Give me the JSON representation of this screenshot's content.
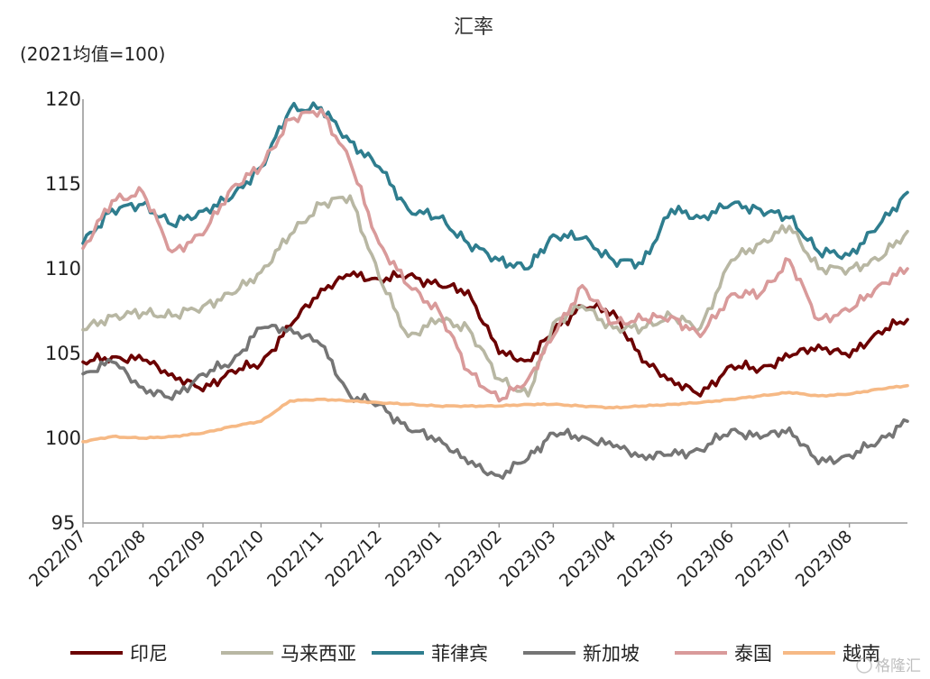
{
  "chart_data": {
    "type": "line",
    "title": "汇率",
    "unit_label": "(2021均值=100)",
    "ylim": [
      95,
      120
    ],
    "y_ticks": [
      95,
      100,
      105,
      110,
      115,
      120
    ],
    "x_tick_labels": [
      "2022/07",
      "2022/08",
      "2022/09",
      "2022/10",
      "2022/11",
      "2022/12",
      "2023/01",
      "2023/02",
      "2023/03",
      "2023/04",
      "2023/05",
      "2023/06",
      "2023/07",
      "2023/08"
    ],
    "x": [
      "2022/07/01",
      "2022/07/16",
      "2022/08/01",
      "2022/08/16",
      "2022/09/01",
      "2022/09/16",
      "2022/10/01",
      "2022/10/16",
      "2022/11/01",
      "2022/11/16",
      "2022/12/01",
      "2022/12/16",
      "2023/01/01",
      "2023/01/16",
      "2023/02/01",
      "2023/02/16",
      "2023/03/01",
      "2023/03/16",
      "2023/04/01",
      "2023/04/16",
      "2023/05/01",
      "2023/05/16",
      "2023/06/01",
      "2023/06/16",
      "2023/07/01",
      "2023/07/16",
      "2023/08/01",
      "2023/08/16",
      "2023/08/31"
    ],
    "grid": false,
    "legend_position": "bottom",
    "series": [
      {
        "name": "印尼",
        "color": "#6b0000",
        "values": [
          104.5,
          104.8,
          104.6,
          103.8,
          102.8,
          104.0,
          104.4,
          106.6,
          108.8,
          109.6,
          109.4,
          109.6,
          109.0,
          108.7,
          105.0,
          104.6,
          106.3,
          107.8,
          107.5,
          104.5,
          103.5,
          102.5,
          104.3,
          104.1,
          104.8,
          105.5,
          104.8,
          106.3,
          107.0
        ]
      },
      {
        "name": "马来西亚",
        "color": "#b8b7a3",
        "values": [
          106.4,
          107.2,
          107.4,
          107.2,
          107.8,
          108.5,
          109.8,
          112.0,
          113.8,
          114.3,
          109.5,
          106.0,
          107.0,
          106.5,
          103.5,
          102.5,
          106.8,
          107.8,
          106.5,
          106.5,
          107.2,
          106.5,
          110.5,
          111.5,
          112.5,
          110.0,
          110.0,
          110.5,
          112.2
        ]
      },
      {
        "name": "菲律宾",
        "color": "#2e7d8e",
        "values": [
          111.5,
          113.5,
          113.8,
          112.6,
          113.4,
          114.2,
          116.0,
          119.4,
          119.5,
          117.5,
          116.0,
          113.5,
          113.0,
          111.5,
          110.5,
          110.0,
          112.0,
          111.8,
          110.5,
          110.3,
          113.5,
          113.0,
          113.8,
          113.5,
          113.0,
          111.0,
          110.8,
          112.5,
          114.5
        ]
      },
      {
        "name": "新加坡",
        "color": "#757575",
        "values": [
          103.8,
          104.5,
          103.0,
          102.3,
          103.8,
          104.5,
          106.5,
          106.5,
          105.5,
          102.5,
          102.0,
          100.5,
          100.0,
          98.5,
          97.8,
          98.8,
          100.3,
          100.1,
          99.5,
          99.0,
          99.0,
          99.3,
          100.5,
          100.0,
          100.6,
          98.5,
          99.0,
          99.8,
          101.0
        ]
      },
      {
        "name": "泰国",
        "color": "#d99a9a",
        "values": [
          111.2,
          114.0,
          114.5,
          111.0,
          112.0,
          114.8,
          116.0,
          118.8,
          119.4,
          116.3,
          111.5,
          109.0,
          107.5,
          104.0,
          102.2,
          103.5,
          106.0,
          109.0,
          106.8,
          107.0,
          107.2,
          106.0,
          108.5,
          108.5,
          110.5,
          107.0,
          107.5,
          109.0,
          110.0
        ]
      },
      {
        "name": "越南",
        "color": "#f6b985",
        "values": [
          99.8,
          100.1,
          100.0,
          100.1,
          100.3,
          100.7,
          101.0,
          102.2,
          102.3,
          102.2,
          102.1,
          102.0,
          101.9,
          101.9,
          101.9,
          102.0,
          102.0,
          101.9,
          101.8,
          101.9,
          102.0,
          102.1,
          102.3,
          102.5,
          102.7,
          102.5,
          102.6,
          102.9,
          103.1
        ]
      }
    ]
  },
  "watermark_text": "格隆汇"
}
